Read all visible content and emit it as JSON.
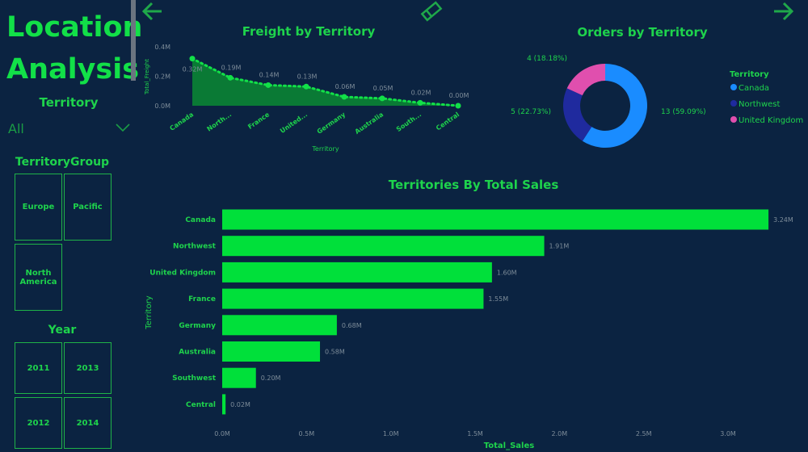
{
  "sidebar": {
    "title": "Location Analysis",
    "territory_label": "Territory",
    "territory_value": "All",
    "territory_group_label": "TerritoryGroup",
    "territory_groups": [
      "Europe",
      "Pacific",
      "North America"
    ],
    "year_label": "Year",
    "years": [
      "2011",
      "2013",
      "2012",
      "2014"
    ]
  },
  "nav": {
    "back_icon": "arrow-left-icon",
    "forward_icon": "arrow-right-icon",
    "clear_icon": "eraser-icon"
  },
  "colors": {
    "accent": "#12e048",
    "bar": "#00e03a",
    "canada": "#1a8cff",
    "northwest": "#1f2a9e",
    "united_kingdom": "#e04fae",
    "background": "#0b2341"
  },
  "chart_data": [
    {
      "type": "area",
      "title": "Freight by Territory",
      "xlabel": "Territory",
      "ylabel": "Total_Freight",
      "categories": [
        "Canada",
        "North...",
        "France",
        "United...",
        "Germany",
        "Australia",
        "South...",
        "Central"
      ],
      "values": [
        0.32,
        0.19,
        0.14,
        0.13,
        0.06,
        0.05,
        0.02,
        0.0
      ],
      "data_labels": [
        "0.32M",
        "0.19M",
        "0.14M",
        "0.13M",
        "0.06M",
        "0.05M",
        "0.02M",
        "0.00M"
      ],
      "yticks": [
        "0.0M",
        "0.2M",
        "0.4M"
      ],
      "ylim": [
        0,
        0.4
      ],
      "unit": "M"
    },
    {
      "type": "pie",
      "title": "Orders by Territory",
      "legend_title": "Territory",
      "legend_position": "right",
      "categories": [
        "Canada",
        "Northwest",
        "United Kingdom"
      ],
      "values": [
        13,
        5,
        4
      ],
      "data_labels": [
        "13 (59.09%)",
        "5 (22.73%)",
        "4 (18.18%)"
      ]
    },
    {
      "type": "bar",
      "orientation": "horizontal",
      "title": "Territories By Total Sales",
      "xlabel": "Total_Sales",
      "ylabel": "Territory",
      "categories": [
        "Canada",
        "Northwest",
        "United Kingdom",
        "France",
        "Germany",
        "Australia",
        "Southwest",
        "Central"
      ],
      "values": [
        3.24,
        1.91,
        1.6,
        1.55,
        0.68,
        0.58,
        0.2,
        0.02
      ],
      "data_labels": [
        "3.24M",
        "1.91M",
        "1.60M",
        "1.55M",
        "0.68M",
        "0.58M",
        "0.20M",
        "0.02M"
      ],
      "xticks": [
        "0.0M",
        "0.5M",
        "1.0M",
        "1.5M",
        "2.0M",
        "2.5M",
        "3.0M"
      ],
      "xlim": [
        0,
        3.24
      ],
      "unit": "M"
    }
  ]
}
